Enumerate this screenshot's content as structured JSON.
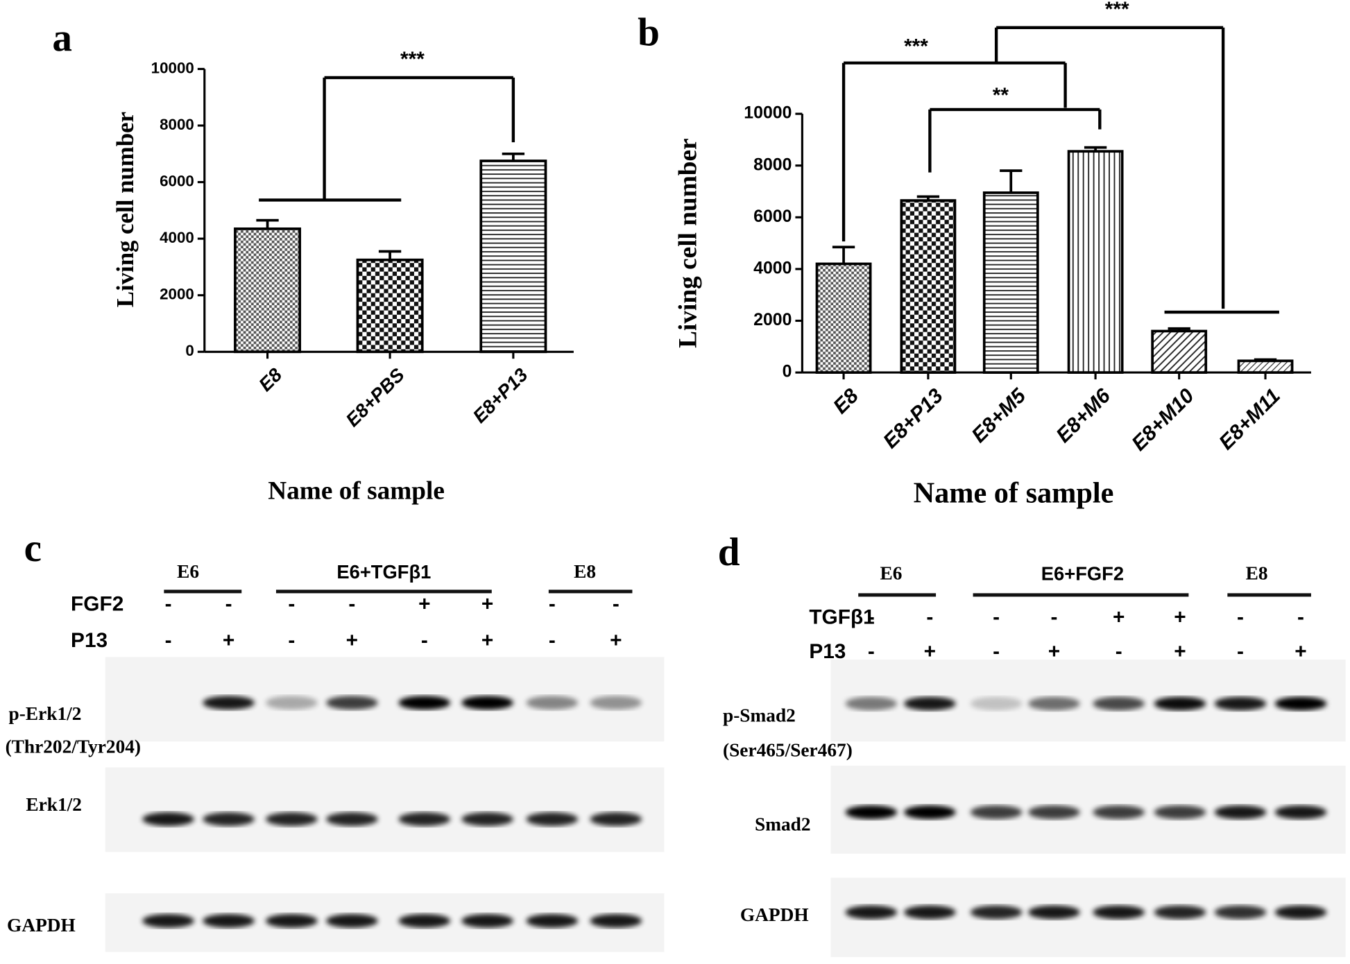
{
  "chart_data": [
    {
      "type": "bar",
      "panel": "a",
      "ylabel": "Living cell number",
      "xlabel": "Name of sample",
      "categories": [
        "E8",
        "E8+PBS",
        "E8+P13"
      ],
      "values": [
        4350,
        3250,
        6750
      ],
      "errors": [
        300,
        300,
        250
      ],
      "ylim": [
        0,
        10000
      ],
      "yticks": [
        0,
        2000,
        4000,
        6000,
        8000,
        10000
      ],
      "annotations": [
        "***"
      ]
    },
    {
      "type": "bar",
      "panel": "b",
      "ylabel": "Living cell number",
      "xlabel": "Name of sample",
      "categories": [
        "E8",
        "E8+P13",
        "E8+M5",
        "E8+M6",
        "E8+M10",
        "E8+M11"
      ],
      "values": [
        4200,
        6650,
        6950,
        8550,
        1600,
        450
      ],
      "errors": [
        650,
        150,
        850,
        150,
        100,
        50
      ],
      "ylim": [
        0,
        10000
      ],
      "yticks": [
        0,
        2000,
        4000,
        6000,
        8000,
        10000
      ],
      "annotations": [
        "***",
        "**",
        "***"
      ]
    }
  ],
  "blots": {
    "c": {
      "panel": "c",
      "groups": [
        "E6",
        "E6+TGFβ1",
        "E8"
      ],
      "rows": [
        {
          "label": "FGF2",
          "signs": [
            "-",
            "-",
            "-",
            "-",
            "+",
            "+",
            "-",
            "-"
          ]
        },
        {
          "label": "P13",
          "signs": [
            "-",
            "+",
            "-",
            "+",
            "-",
            "+",
            "-",
            "+"
          ]
        }
      ],
      "labels": [
        "p-Erk1/2",
        "(Thr202/Tyr204)",
        "Erk1/2",
        "GAPDH"
      ]
    },
    "d": {
      "panel": "d",
      "groups": [
        "E6",
        "E6+FGF2",
        "E8"
      ],
      "rows": [
        {
          "label": "TGFβ1",
          "signs": [
            "-",
            "-",
            "-",
            "-",
            "+",
            "+",
            "-",
            "-"
          ]
        },
        {
          "label": "P13",
          "signs": [
            "-",
            "+",
            "-",
            "+",
            "-",
            "+",
            "-",
            "+"
          ]
        }
      ],
      "labels": [
        "p-Smad2",
        "(Ser465/Ser467)",
        "Smad2",
        "GAPDH"
      ]
    }
  }
}
